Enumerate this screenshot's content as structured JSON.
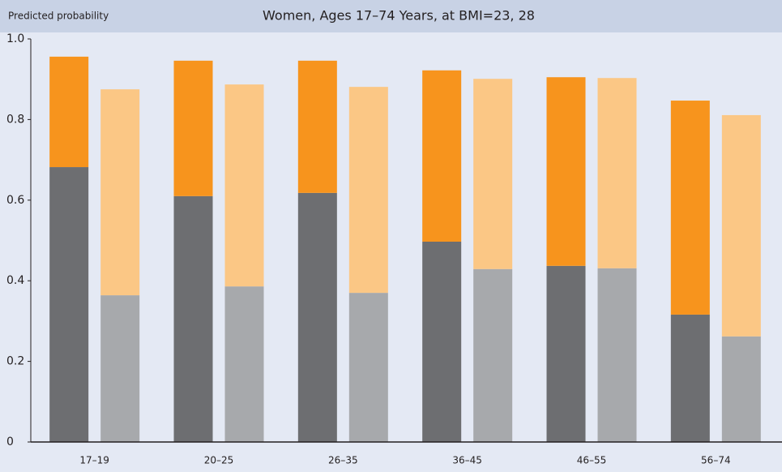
{
  "chart_data": {
    "type": "stacked-bar-pairs",
    "title": "Women, Ages 17–74 Years, at BMI=23, 28",
    "y_label": "Predicted probability",
    "categories": [
      "17–19",
      "20–25",
      "26–35",
      "36–45",
      "46–55",
      "56–74"
    ],
    "series": [
      {
        "color": "#6d6e71",
        "stack": 0,
        "values": [
          0.682,
          0.61,
          0.618,
          0.497,
          0.437,
          0.316
        ]
      },
      {
        "color": "#f7941d",
        "stack": 0,
        "values": [
          0.274,
          0.336,
          0.328,
          0.425,
          0.468,
          0.531
        ]
      },
      {
        "color": "#a7a9ac",
        "stack": 1,
        "values": [
          0.364,
          0.386,
          0.37,
          0.429,
          0.431,
          0.262
        ]
      },
      {
        "color": "#fbc785",
        "stack": 1,
        "values": [
          0.511,
          0.501,
          0.511,
          0.472,
          0.472,
          0.549
        ]
      }
    ],
    "ylim": [
      0,
      1
    ],
    "yticks": [
      0,
      0.2,
      0.4,
      0.6,
      0.8,
      {
        "value": 1,
        "label": "1.0"
      }
    ],
    "grid": false
  }
}
